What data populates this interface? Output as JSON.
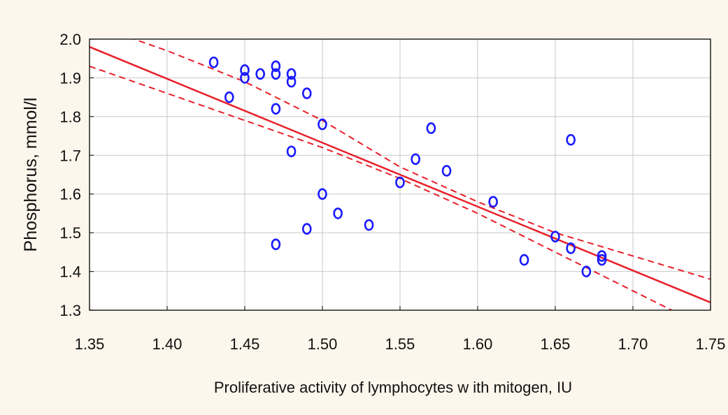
{
  "chart_data": {
    "type": "scatter",
    "xlabel": "Proliferative activity of lymphocytes w ith mitogen, IU",
    "ylabel": "Phosphorus, mmol/l",
    "xlim": [
      1.35,
      1.75
    ],
    "ylim": [
      1.3,
      2.0
    ],
    "x_ticks": [
      "1.35",
      "1.40",
      "1.45",
      "1.50",
      "1.55",
      "1.60",
      "1.65",
      "1.70",
      "1.75"
    ],
    "y_ticks": [
      "2.0",
      "1.9",
      "1.8",
      "1.7",
      "1.6",
      "1.5",
      "1.4",
      "1.3"
    ],
    "grid": true,
    "points": [
      {
        "x": 1.43,
        "y": 1.94
      },
      {
        "x": 1.44,
        "y": 1.85
      },
      {
        "x": 1.45,
        "y": 1.92
      },
      {
        "x": 1.45,
        "y": 1.9
      },
      {
        "x": 1.46,
        "y": 1.91
      },
      {
        "x": 1.47,
        "y": 1.93
      },
      {
        "x": 1.47,
        "y": 1.91
      },
      {
        "x": 1.47,
        "y": 1.82
      },
      {
        "x": 1.47,
        "y": 1.47
      },
      {
        "x": 1.48,
        "y": 1.91
      },
      {
        "x": 1.48,
        "y": 1.89
      },
      {
        "x": 1.48,
        "y": 1.71
      },
      {
        "x": 1.49,
        "y": 1.86
      },
      {
        "x": 1.49,
        "y": 1.51
      },
      {
        "x": 1.5,
        "y": 1.78
      },
      {
        "x": 1.5,
        "y": 1.6
      },
      {
        "x": 1.51,
        "y": 1.55
      },
      {
        "x": 1.53,
        "y": 1.52
      },
      {
        "x": 1.55,
        "y": 1.63
      },
      {
        "x": 1.56,
        "y": 1.69
      },
      {
        "x": 1.57,
        "y": 1.77
      },
      {
        "x": 1.58,
        "y": 1.66
      },
      {
        "x": 1.61,
        "y": 1.58
      },
      {
        "x": 1.63,
        "y": 1.43
      },
      {
        "x": 1.65,
        "y": 1.49
      },
      {
        "x": 1.66,
        "y": 1.74
      },
      {
        "x": 1.66,
        "y": 1.46
      },
      {
        "x": 1.67,
        "y": 1.4
      },
      {
        "x": 1.68,
        "y": 1.44
      },
      {
        "x": 1.68,
        "y": 1.43
      }
    ],
    "regression_line": {
      "x": [
        1.35,
        1.75
      ],
      "y": [
        1.98,
        1.32
      ]
    },
    "confidence_band_upper": {
      "x": [
        1.35,
        1.4,
        1.45,
        1.5,
        1.55,
        1.6,
        1.65,
        1.7,
        1.75
      ],
      "y": [
        2.04,
        1.97,
        1.89,
        1.79,
        1.67,
        1.58,
        1.5,
        1.44,
        1.38
      ]
    },
    "confidence_band_lower": {
      "x": [
        1.35,
        1.4,
        1.45,
        1.5,
        1.55,
        1.6,
        1.65,
        1.7,
        1.75
      ],
      "y": [
        1.93,
        1.86,
        1.79,
        1.72,
        1.64,
        1.55,
        1.45,
        1.35,
        1.25
      ]
    },
    "colors": {
      "points": "#1a1aff",
      "regression": "#e8202a",
      "grid": "#c8c8c8",
      "background": "#fdf6ec"
    }
  }
}
